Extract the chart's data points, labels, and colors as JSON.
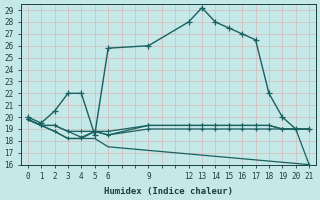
{
  "xlabel": "Humidex (Indice chaleur)",
  "bg_color": "#c5e8e8",
  "grid_color": "#d4b8b8",
  "line_color": "#1a6060",
  "xlim": [
    -0.5,
    21.5
  ],
  "ylim": [
    16,
    29.5
  ],
  "yticks": [
    16,
    17,
    18,
    19,
    20,
    21,
    22,
    23,
    24,
    25,
    26,
    27,
    28,
    29
  ],
  "xtick_positions": [
    0,
    1,
    2,
    3,
    4,
    5,
    6,
    9,
    12,
    13,
    14,
    15,
    16,
    17,
    18,
    19,
    20,
    21
  ],
  "peak_x": [
    0,
    1,
    2,
    3,
    4,
    5,
    6,
    9,
    12,
    13,
    14,
    15,
    16,
    17,
    18,
    19,
    20,
    21
  ],
  "peak_y": [
    20.0,
    19.5,
    20.5,
    22.0,
    22.0,
    18.5,
    25.8,
    26.0,
    28.0,
    29.2,
    28.0,
    27.5,
    27.0,
    26.5,
    22.0,
    20.0,
    19.0,
    19.0
  ],
  "flat1_x": [
    0,
    1,
    2,
    3,
    4,
    5,
    6,
    9,
    12,
    13,
    14,
    15,
    16,
    17,
    18,
    19,
    20,
    21
  ],
  "flat1_y": [
    19.8,
    19.3,
    19.3,
    18.8,
    18.8,
    18.8,
    18.8,
    19.3,
    19.3,
    19.3,
    19.3,
    19.3,
    19.3,
    19.3,
    19.3,
    19.0,
    19.0,
    19.0
  ],
  "flat2_x": [
    0,
    1,
    2,
    3,
    4,
    5,
    6,
    9,
    12,
    13,
    14,
    15,
    16,
    17,
    18,
    19,
    20,
    21
  ],
  "flat2_y": [
    19.8,
    19.3,
    18.8,
    18.2,
    18.2,
    18.8,
    18.5,
    19.0,
    19.0,
    19.0,
    19.0,
    19.0,
    19.0,
    19.0,
    19.0,
    19.0,
    19.0,
    19.0
  ],
  "descent_x": [
    0,
    1,
    2,
    3,
    4,
    5,
    6,
    7,
    8,
    9,
    10,
    11,
    12,
    13,
    14,
    15,
    16,
    17,
    18,
    19,
    20,
    21
  ],
  "descent_y": [
    19.8,
    19.3,
    18.8,
    18.2,
    18.2,
    18.2,
    17.5,
    17.4,
    17.3,
    17.2,
    17.1,
    17.0,
    16.9,
    16.8,
    16.7,
    16.6,
    16.5,
    16.4,
    16.3,
    16.2,
    16.1,
    16.0
  ],
  "drop_x": [
    0,
    1,
    2,
    3,
    4,
    5,
    6,
    9,
    12,
    13,
    14,
    15,
    16,
    17,
    18,
    19,
    20,
    21
  ],
  "drop_y": [
    19.8,
    19.3,
    19.3,
    18.8,
    18.3,
    18.8,
    18.5,
    19.3,
    19.3,
    19.3,
    19.3,
    19.3,
    19.3,
    19.3,
    19.3,
    19.0,
    19.0,
    16.0
  ]
}
